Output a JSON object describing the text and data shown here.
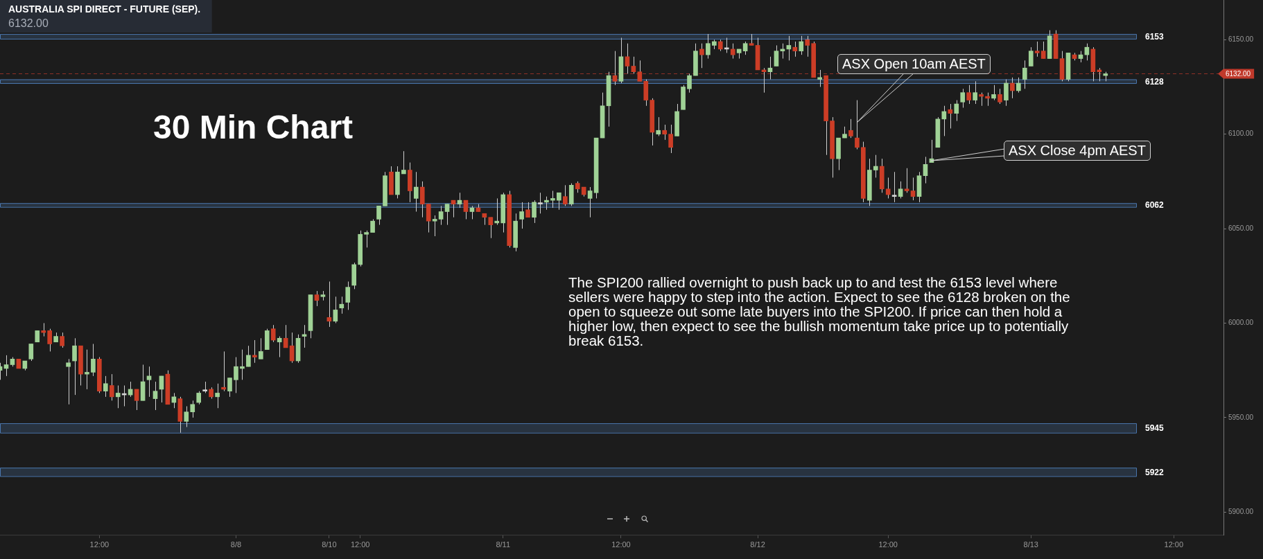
{
  "chart_data": {
    "type": "candlestick",
    "title": "AUSTRALIA SPI DIRECT - FUTURE (SEP).",
    "subtitle": "6132.00",
    "categories": [
      null,
      null,
      null,
      null,
      null,
      null,
      null,
      null,
      null,
      null,
      null,
      null,
      null,
      null,
      null,
      null,
      "12:00",
      null,
      null,
      null,
      null,
      null,
      null,
      null,
      null,
      null,
      null,
      null,
      null,
      null,
      null,
      null,
      null,
      null,
      null,
      null,
      null,
      null,
      "8/8",
      null,
      null,
      null,
      null,
      null,
      null,
      null,
      null,
      null,
      null,
      null,
      null,
      null,
      null,
      "8/10",
      null,
      null,
      null,
      null,
      "12:00",
      null,
      null,
      null,
      null,
      null,
      null,
      null,
      null,
      null,
      null,
      null,
      null,
      null,
      null,
      null,
      null,
      null,
      null,
      null,
      null,
      null,
      null,
      "8/11",
      null,
      null,
      null,
      null,
      null,
      null,
      null,
      null,
      null,
      null,
      null,
      null,
      null,
      null,
      null,
      null,
      null,
      null,
      "12:00",
      null,
      null,
      null,
      null,
      null,
      null,
      null,
      null,
      null,
      null,
      null,
      null,
      null,
      null,
      null,
      null,
      null,
      null,
      null,
      null,
      null,
      "8/12",
      null,
      null,
      null,
      null,
      null,
      null,
      null,
      null,
      null,
      null,
      null,
      null,
      null,
      null,
      null,
      null,
      null,
      null,
      null,
      null,
      "12:00",
      null,
      null,
      null,
      null,
      null,
      null,
      null,
      null,
      null,
      null,
      null,
      null,
      null,
      null,
      null,
      null,
      null,
      null,
      null,
      null,
      null,
      null,
      "8/13",
      null,
      null,
      null,
      null,
      null,
      null,
      null,
      null,
      null,
      null,
      null,
      null,
      null,
      null,
      null,
      null,
      null,
      null,
      null,
      null,
      null,
      null,
      "12:00",
      null,
      null,
      null,
      null,
      null,
      null,
      null,
      null
    ],
    "ohlc": [
      [
        5975,
        5979,
        5970,
        5977
      ],
      [
        5976,
        5983,
        5972,
        5978
      ],
      [
        5978,
        5982,
        5977,
        5981
      ],
      [
        5981,
        5981,
        5976,
        5976
      ],
      [
        5976,
        5980,
        5975,
        5980
      ],
      [
        5981,
        5989,
        5980,
        5989
      ],
      [
        5990,
        5996,
        5990,
        5996
      ],
      [
        5996,
        6000,
        5993,
        5995
      ],
      [
        5996,
        5997,
        5985,
        5989
      ],
      [
        5990,
        5995,
        5990,
        5993
      ],
      [
        5993,
        5995,
        5987,
        5988
      ],
      [
        5977,
        5981,
        5957,
        5979
      ],
      [
        5980,
        5992,
        5962,
        5988
      ],
      [
        5988,
        5988,
        5967,
        5973
      ],
      [
        5973,
        5986,
        5965,
        5974
      ],
      [
        5974,
        5989,
        5972,
        5981
      ],
      [
        5981,
        5982,
        5963,
        5964
      ],
      [
        5964,
        5972,
        5961,
        5968
      ],
      [
        5967,
        5973,
        5959,
        5961
      ],
      [
        5961,
        5967,
        5955,
        5963
      ],
      [
        5962,
        5967,
        5956,
        5962
      ],
      [
        5962,
        5969,
        5961,
        5965
      ],
      [
        5965,
        5965,
        5954,
        5959
      ],
      [
        5959,
        5978,
        5959,
        5969
      ],
      [
        5970,
        5977,
        5961,
        5972
      ],
      [
        5960,
        5969,
        5954,
        5964
      ],
      [
        5965,
        5972,
        5958,
        5972
      ],
      [
        5973,
        5975,
        5957,
        5957
      ],
      [
        5958,
        5963,
        5955,
        5961
      ],
      [
        5960,
        5961,
        5942,
        5948
      ],
      [
        5948,
        5956,
        5945,
        5953
      ],
      [
        5953,
        5959,
        5950,
        5957
      ],
      [
        5958,
        5964,
        5957,
        5963
      ],
      [
        5964,
        5969,
        5963,
        5964
      ],
      [
        5965,
        5966,
        5960,
        5961
      ],
      [
        5961,
        5968,
        5955,
        5963
      ],
      [
        5966,
        5985,
        5964,
        5965
      ],
      [
        5964,
        5971,
        5961,
        5971
      ],
      [
        5970,
        5982,
        5963,
        5977
      ],
      [
        5976,
        5986,
        5970,
        5977
      ],
      [
        5977,
        5988,
        5977,
        5983
      ],
      [
        5983,
        5991,
        5979,
        5982
      ],
      [
        5981,
        5992,
        5981,
        5985
      ],
      [
        5986,
        5997,
        5986,
        5996
      ],
      [
        5997,
        5999,
        5990,
        5991
      ],
      [
        5990,
        5993,
        5982,
        5992
      ],
      [
        5992,
        5999,
        5987,
        5987
      ],
      [
        5988,
        5995,
        5979,
        5980
      ],
      [
        5980,
        5994,
        5979,
        5992
      ],
      [
        5993,
        5999,
        5987,
        5994
      ],
      [
        5996,
        6015,
        5992,
        6015
      ],
      [
        6015,
        6017,
        6009,
        6012
      ],
      [
        6014,
        6017,
        6012,
        6015
      ],
      [
        6003,
        6022,
        5998,
        6001
      ],
      [
        6001,
        6014,
        6000,
        6007
      ],
      [
        6008,
        6014,
        6005,
        6010
      ],
      [
        6011,
        6022,
        6007,
        6019
      ],
      [
        6020,
        6032,
        6018,
        6031
      ],
      [
        6031,
        6049,
        6030,
        6047
      ],
      [
        6047,
        6049,
        6040,
        6048
      ],
      [
        6048,
        6055,
        6048,
        6054
      ],
      [
        6055,
        6062,
        6052,
        6062
      ],
      [
        6062,
        6080,
        6062,
        6078
      ],
      [
        6080,
        6083,
        6068,
        6068
      ],
      [
        6068,
        6083,
        6066,
        6080
      ],
      [
        6079,
        6091,
        6079,
        6081
      ],
      [
        6081,
        6085,
        6064,
        6070
      ],
      [
        6066,
        6080,
        6059,
        6072
      ],
      [
        6072,
        6075,
        6056,
        6063
      ],
      [
        6063,
        6063,
        6048,
        6054
      ],
      [
        6054,
        6057,
        6046,
        6055
      ],
      [
        6055,
        6062,
        6052,
        6059
      ],
      [
        6059,
        6063,
        6052,
        6063
      ],
      [
        6065,
        6065,
        6056,
        6063
      ],
      [
        6063,
        6069,
        6061,
        6065
      ],
      [
        6065,
        6065,
        6055,
        6059
      ],
      [
        6059,
        6062,
        6055,
        6061
      ],
      [
        6061,
        6063,
        6059,
        6059
      ],
      [
        6058,
        6058,
        6052,
        6056
      ],
      [
        6056,
        6056,
        6045,
        6052
      ],
      [
        6053,
        6066,
        6052,
        6054
      ],
      [
        6053,
        6069,
        6048,
        6068
      ],
      [
        6068,
        6070,
        6040,
        6041
      ],
      [
        6040,
        6058,
        6038,
        6054
      ],
      [
        6055,
        6064,
        6050,
        6059
      ],
      [
        6060,
        6064,
        6056,
        6056
      ],
      [
        6056,
        6065,
        6053,
        6064
      ],
      [
        6063,
        6069,
        6058,
        6063
      ],
      [
        6064,
        6067,
        6060,
        6065
      ],
      [
        6065,
        6070,
        6061,
        6066
      ],
      [
        6065,
        6069,
        6060,
        6069
      ],
      [
        6067,
        6073,
        6062,
        6063
      ],
      [
        6063,
        6074,
        6062,
        6073
      ],
      [
        6074,
        6075,
        6069,
        6071
      ],
      [
        6072,
        6072,
        6067,
        6068
      ],
      [
        6066,
        6072,
        6056,
        6070
      ],
      [
        6069,
        6098,
        6066,
        6098
      ],
      [
        6098,
        6122,
        6098,
        6115
      ],
      [
        6115,
        6133,
        6104,
        6131
      ],
      [
        6131,
        6144,
        6126,
        6128
      ],
      [
        6128,
        6151,
        6127,
        6141
      ],
      [
        6141,
        6148,
        6132,
        6136
      ],
      [
        6136,
        6141,
        6132,
        6133
      ],
      [
        6133,
        6139,
        6128,
        6128
      ],
      [
        6128,
        6129,
        6115,
        6118
      ],
      [
        6118,
        6119,
        6094,
        6101
      ],
      [
        6100,
        6109,
        6099,
        6102
      ],
      [
        6102,
        6105,
        6097,
        6100
      ],
      [
        6100,
        6105,
        6090,
        6093
      ],
      [
        6099,
        6116,
        6099,
        6112
      ],
      [
        6113,
        6126,
        6113,
        6125
      ],
      [
        6124,
        6132,
        6122,
        6131
      ],
      [
        6131,
        6148,
        6131,
        6144
      ],
      [
        6145,
        6148,
        6135,
        6142
      ],
      [
        6142,
        6153,
        6140,
        6148
      ],
      [
        6147,
        6150,
        6145,
        6149
      ],
      [
        6149,
        6150,
        6144,
        6145
      ],
      [
        6145,
        6151,
        6143,
        6145
      ],
      [
        6145,
        6148,
        6140,
        6142
      ],
      [
        6143,
        6145,
        6140,
        6145
      ],
      [
        6144,
        6149,
        6142,
        6148
      ],
      [
        6148,
        6153,
        6147,
        6147
      ],
      [
        6147,
        6151,
        6134,
        6134
      ],
      [
        6134,
        6135,
        6122,
        6133
      ],
      [
        6133,
        6141,
        6129,
        6135
      ],
      [
        6136,
        6147,
        6136,
        6144
      ],
      [
        6144,
        6148,
        6140,
        6145
      ],
      [
        6145,
        6152,
        6139,
        6147
      ],
      [
        6146,
        6149,
        6141,
        6144
      ],
      [
        6144,
        6152,
        6142,
        6149
      ],
      [
        6150,
        6152,
        6141,
        6147
      ],
      [
        6148,
        6149,
        6130,
        6130
      ],
      [
        6129,
        6134,
        6125,
        6130
      ],
      [
        6131,
        6131,
        6089,
        6107
      ],
      [
        6107,
        6109,
        6077,
        6087
      ],
      [
        6087,
        6098,
        6081,
        6098
      ],
      [
        6098,
        6104,
        6098,
        6100
      ],
      [
        6102,
        6108,
        6098,
        6099
      ],
      [
        6098,
        6118,
        6092,
        6093
      ],
      [
        6093,
        6096,
        6064,
        6066
      ],
      [
        6065,
        6087,
        6062,
        6081
      ],
      [
        6081,
        6089,
        6077,
        6083
      ],
      [
        6083,
        6087,
        6069,
        6071
      ],
      [
        6071,
        6077,
        6066,
        6068
      ],
      [
        6067,
        6080,
        6064,
        6067
      ],
      [
        6067,
        6075,
        6066,
        6071
      ],
      [
        6071,
        6082,
        6069,
        6070
      ],
      [
        6070,
        6077,
        6065,
        6067
      ],
      [
        6067,
        6080,
        6064,
        6078
      ],
      [
        6078,
        6088,
        6074,
        6084
      ],
      [
        6085,
        6097,
        6085,
        6087
      ],
      [
        6093,
        6109,
        6093,
        6108
      ],
      [
        6108,
        6115,
        6099,
        6112
      ],
      [
        6113,
        6116,
        6103,
        6111
      ],
      [
        6111,
        6118,
        6107,
        6116
      ],
      [
        6117,
        6124,
        6114,
        6122
      ],
      [
        6122,
        6126,
        6116,
        6118
      ],
      [
        6118,
        6128,
        6116,
        6122
      ],
      [
        6121,
        6122,
        6115,
        6120
      ],
      [
        6120,
        6122,
        6115,
        6119
      ],
      [
        6119,
        6126,
        6118,
        6121
      ],
      [
        6121,
        6124,
        6116,
        6117
      ],
      [
        6118,
        6129,
        6115,
        6127
      ],
      [
        6127,
        6130,
        6119,
        6123
      ],
      [
        6123,
        6130,
        6122,
        6127
      ],
      [
        6129,
        6139,
        6124,
        6135
      ],
      [
        6136,
        6146,
        6136,
        6144
      ],
      [
        6144,
        6149,
        6141,
        6143
      ],
      [
        6144,
        6149,
        6140,
        6140
      ],
      [
        6140,
        6155,
        6140,
        6152
      ],
      [
        6153,
        6155,
        6140,
        6140
      ],
      [
        6140,
        6144,
        6128,
        6129
      ],
      [
        6129,
        6143,
        6128,
        6143
      ],
      [
        6142,
        6143,
        6139,
        6140
      ],
      [
        6140,
        6144,
        6138,
        6142
      ],
      [
        6142,
        6148,
        6139,
        6146
      ],
      [
        6145,
        6146,
        6128,
        6133
      ],
      [
        6134,
        6135,
        6128,
        6133
      ],
      [
        6131,
        6133,
        6128,
        6132
      ],
      null,
      null,
      null,
      null,
      null,
      null,
      null,
      null,
      null,
      null,
      null,
      null,
      null,
      null,
      null,
      null,
      null,
      null,
      null
    ],
    "colors": [
      "#a0d296",
      "#a0d296",
      "#a0d296",
      "#cc3d26",
      "#a0d296",
      "#a0d296",
      "#a0d296",
      "#cc3d26",
      "#cc3d26",
      "#a0d296",
      "#cc3d26",
      "#a0d296",
      "#a0d296",
      "#cc3d26",
      "#a0d296",
      "#a0d296",
      "#cc3d26",
      "#a0d296",
      "#cc3d26",
      "#a0d296",
      "#d4d4d4",
      "#a0d296",
      "#cc3d26",
      "#a0d296",
      "#a0d296",
      "#a0d296",
      "#a0d296",
      "#cc3d26",
      "#a0d296",
      "#cc3d26",
      "#a0d296",
      "#a0d296",
      "#a0d296",
      "#d4d4d4",
      "#cc3d26",
      "#a0d296",
      "#cc3d26",
      "#a0d296",
      "#a0d296",
      "#a0d296",
      "#a0d296",
      "#cc3d26",
      "#a0d296",
      "#a0d296",
      "#cc3d26",
      "#a0d296",
      "#cc3d26",
      "#cc3d26",
      "#a0d296",
      "#a0d296",
      "#a0d296",
      "#cc3d26",
      "#a0d296",
      "#cc3d26",
      "#a0d296",
      "#a0d296",
      "#a0d296",
      "#a0d296",
      "#a0d296",
      "#a0d296",
      "#a0d296",
      "#a0d296",
      "#a0d296",
      "#cc3d26",
      "#a0d296",
      "#a0d296",
      "#cc3d26",
      "#a0d296",
      "#cc3d26",
      "#cc3d26",
      "#a0d296",
      "#a0d296",
      "#a0d296",
      "#cc3d26",
      "#a0d296",
      "#cc3d26",
      "#a0d296",
      "#cc3d26",
      "#cc3d26",
      "#cc3d26",
      "#a0d296",
      "#a0d296",
      "#cc3d26",
      "#a0d296",
      "#a0d296",
      "#cc3d26",
      "#a0d296",
      "#d4d4d4",
      "#a0d296",
      "#a0d296",
      "#a0d296",
      "#cc3d26",
      "#a0d296",
      "#cc3d26",
      "#cc3d26",
      "#a0d296",
      "#a0d296",
      "#a0d296",
      "#a0d296",
      "#cc3d26",
      "#a0d296",
      "#cc3d26",
      "#cc3d26",
      "#cc3d26",
      "#cc3d26",
      "#cc3d26",
      "#a0d296",
      "#cc3d26",
      "#cc3d26",
      "#a0d296",
      "#a0d296",
      "#a0d296",
      "#a0d296",
      "#cc3d26",
      "#a0d296",
      "#a0d296",
      "#cc3d26",
      "#d4d4d4",
      "#cc3d26",
      "#a0d296",
      "#a0d296",
      "#cc3d26",
      "#cc3d26",
      "#cc3d26",
      "#a0d296",
      "#a0d296",
      "#a0d296",
      "#a0d296",
      "#cc3d26",
      "#a0d296",
      "#cc3d26",
      "#cc3d26",
      "#a0d296",
      "#cc3d26",
      "#cc3d26",
      "#a0d296",
      "#a0d296",
      "#cc3d26",
      "#cc3d26",
      "#cc3d26",
      "#a0d296",
      "#a0d296",
      "#cc3d26",
      "#cc3d26",
      "#d4d4d4",
      "#a0d296",
      "#cc3d26",
      "#cc3d26",
      "#a0d296",
      "#a0d296",
      "#a0d296",
      "#a0d296",
      "#a0d296",
      "#cc3d26",
      "#a0d296",
      "#a0d296",
      "#cc3d26",
      "#a0d296",
      "#cc3d26",
      "#cc3d26",
      "#a0d296",
      "#cc3d26",
      "#a0d296",
      "#cc3d26",
      "#a0d296",
      "#a0d296",
      "#a0d296",
      "#cc3d26",
      "#cc3d26",
      "#a0d296",
      "#cc3d26",
      "#cc3d26",
      "#a0d296",
      "#cc3d26",
      "#a0d296",
      "#a0d296",
      "#cc3d26",
      "#cc3d26",
      "#a0d296",
      null,
      null,
      null,
      null,
      null,
      null,
      null,
      null,
      null,
      null,
      null,
      null,
      null,
      null,
      null,
      null,
      null,
      null,
      null
    ],
    "ylim": [
      5888,
      6171
    ],
    "yticks": [
      {
        "value": 5900,
        "label": "5900.00"
      },
      {
        "value": 5950,
        "label": "5950.00"
      },
      {
        "value": 6000,
        "label": "6000.00"
      },
      {
        "value": 6050,
        "label": "6050.00"
      },
      {
        "value": 6100,
        "label": "6100.00"
      },
      {
        "value": 6150,
        "label": "6150.00"
      }
    ],
    "grid": false,
    "legend": false,
    "ref_lines": [
      {
        "axis": "y",
        "value": 6132,
        "label": "6132.00",
        "color": "#c0392b",
        "line_style": "dashed"
      }
    ],
    "bands": [
      {
        "axis": "y",
        "from": 6150.5,
        "to": 6153,
        "label": "6153",
        "color": "#4a76ad"
      },
      {
        "axis": "y",
        "from": 6127,
        "to": 6129,
        "label": "6128",
        "color": "#4a76ad"
      },
      {
        "axis": "y",
        "from": 6061.5,
        "to": 6063.5,
        "label": "6062",
        "color": "#4a76ad"
      },
      {
        "axis": "y",
        "from": 5942,
        "to": 5947,
        "label": "5945",
        "color": "#4a76ad"
      },
      {
        "axis": "y",
        "from": 5919,
        "to": 5923.5,
        "label": "5922",
        "color": "#4a76ad"
      }
    ],
    "annotations": [
      "30 Min Chart",
      "ASX Open 10am AEST",
      "ASX Close 4pm AEST",
      "The SPI200 rallied overnight to push back up to and test the 6153 level where sellers were happy to step into the action. Expect to see the 6128 broken on the open to squeeze out some late buyers into the SPI200. If price can then hold a higher low, then expect to see the bullish momentum take price up to potentially break 6153."
    ]
  }
}
